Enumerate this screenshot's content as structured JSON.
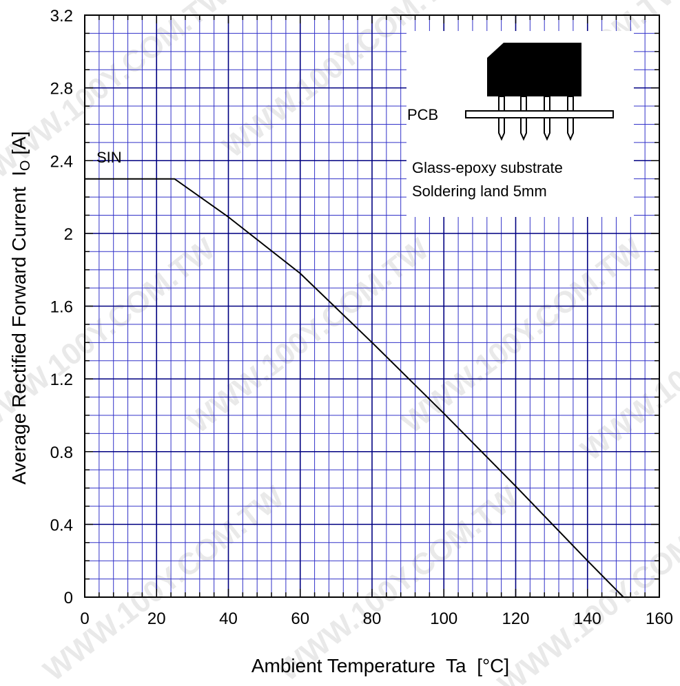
{
  "chart_data": {
    "type": "line",
    "x": [
      0,
      25,
      40,
      60,
      80,
      100,
      120,
      140,
      150
    ],
    "series": [
      {
        "name": "SIN",
        "values": [
          2.3,
          2.3,
          2.09,
          1.78,
          1.4,
          1.01,
          0.61,
          0.2,
          0.0
        ]
      }
    ],
    "xlabel": "Ambient Temperature  Ta  [°C]",
    "ylabel": "Average Rectified Forward Current  I",
    "ylabel_subscript": "O",
    "ylabel_unit": " [A]",
    "xlim": [
      0,
      160
    ],
    "ylim": [
      0,
      3.2
    ],
    "x_ticks": [
      0,
      20,
      40,
      60,
      80,
      100,
      120,
      140,
      160
    ],
    "x_tick_labels": [
      "0",
      "20",
      "40",
      "60",
      "80",
      "100",
      "120",
      "140",
      "160"
    ],
    "y_ticks": [
      0,
      0.4,
      0.8,
      1.2,
      1.6,
      2.0,
      2.4,
      2.8,
      3.2
    ],
    "y_tick_labels": [
      "0",
      "0.4",
      "0.8",
      "1.2",
      "1.6",
      "2",
      "2.4",
      "2.8",
      "3.2"
    ],
    "grid": true,
    "grid_color": "#3030c8",
    "line_color": "#000000",
    "annotations": {
      "series_label": "SIN",
      "pcb_label": "PCB",
      "note_line1": "Glass-epoxy  substrate",
      "note_line2": "Soldering  land  5mm"
    },
    "watermark": "WWW.100Y.COM.TW"
  }
}
